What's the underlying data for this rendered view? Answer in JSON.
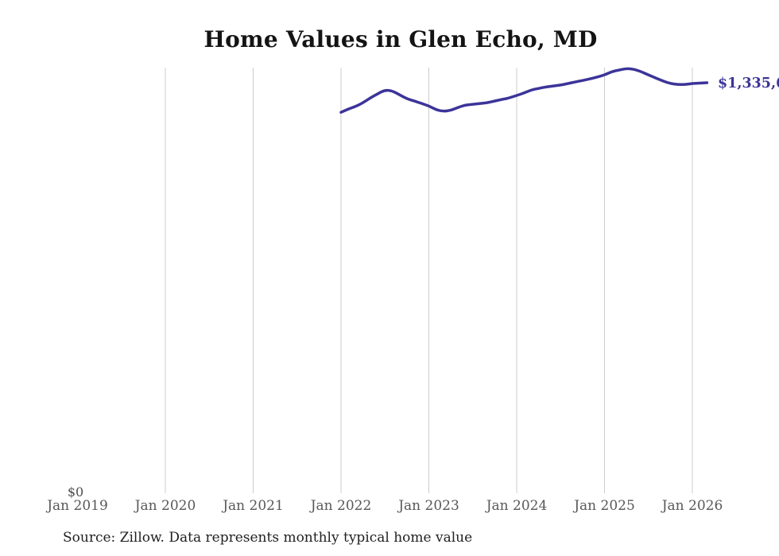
{
  "title": "Home Values in Glen Echo, MD",
  "source_note": "Source: Zillow. Data represents monthly typical home value",
  "end_label": "$1,335,6",
  "y_zero_label": "$0",
  "colors": {
    "line": "#3c3499",
    "grid": "#cccccc",
    "tick_text": "#585858",
    "title_text": "#141414",
    "source_text": "#1f1f1f",
    "end_label_text": "#3c3499",
    "background": "#ffffff"
  },
  "chart_data": {
    "type": "line",
    "title": "Home Values in Glen Echo, MD",
    "x_tick_labels": [
      "Jan 2019",
      "Jan 2020",
      "Jan 2021",
      "Jan 2022",
      "Jan 2023",
      "Jan 2024",
      "Jan 2025",
      "Jan 2026"
    ],
    "x_range": [
      "Jan 2019",
      "Mar 2026"
    ],
    "ylim": [
      0,
      1385000
    ],
    "y_zero_label": "$0",
    "grid": "vertical yearly gridlines at Jan 2020 through Jan 2026",
    "legend": "none",
    "end_value_label": "$1,335,6",
    "series": [
      {
        "name": "Monthly typical home value",
        "start_month": "Jan 2022",
        "frequency": "monthly",
        "values": [
          1239000,
          1250000,
          1258000,
          1270000,
          1286000,
          1299000,
          1312000,
          1309000,
          1296000,
          1283000,
          1276000,
          1268000,
          1260000,
          1247000,
          1242000,
          1245000,
          1255000,
          1263000,
          1265000,
          1268000,
          1270000,
          1276000,
          1281000,
          1286000,
          1294000,
          1302000,
          1312000,
          1317000,
          1322000,
          1325000,
          1328000,
          1333000,
          1338000,
          1343000,
          1348000,
          1354000,
          1361000,
          1372000,
          1377000,
          1382000,
          1380000,
          1372000,
          1361000,
          1351000,
          1341000,
          1333000,
          1330000,
          1330000,
          1333000,
          1334000,
          1335600
        ]
      }
    ]
  }
}
